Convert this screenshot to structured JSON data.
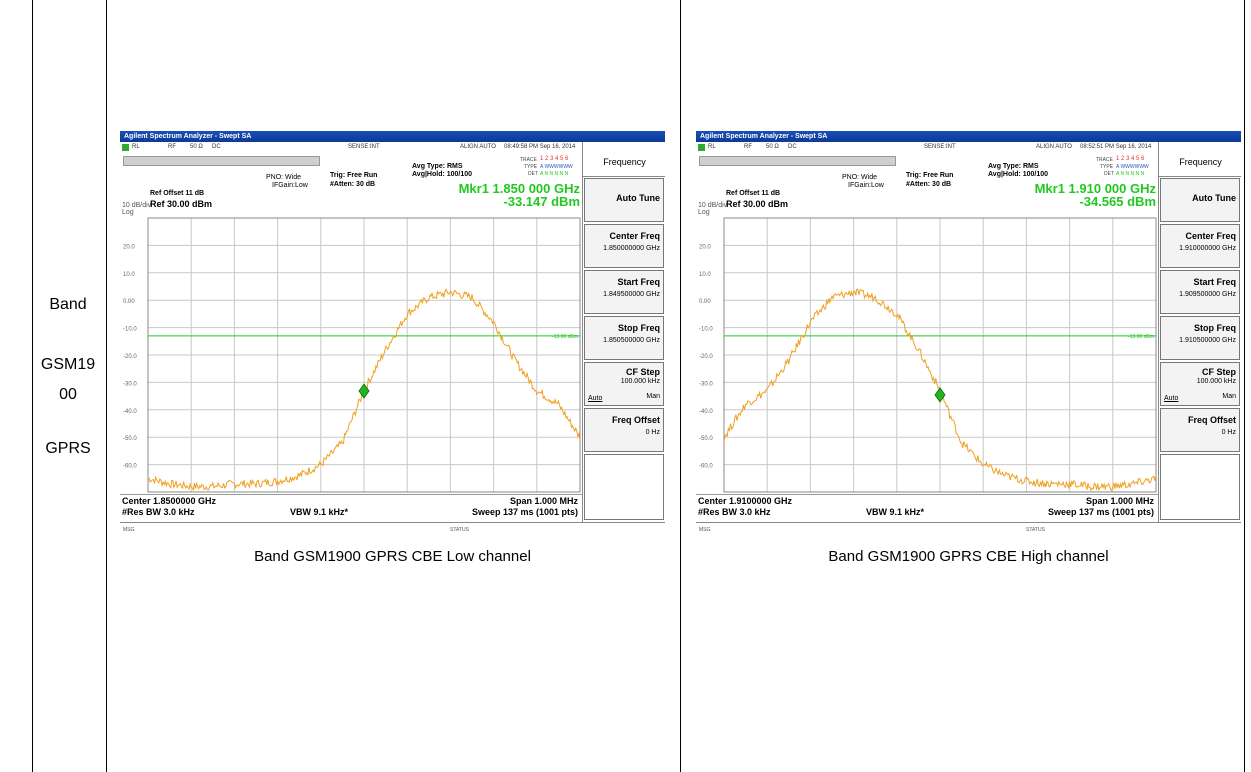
{
  "row_label": {
    "line1": "Band",
    "line2": "GSM19",
    "line3": "00",
    "line4": "GPRS"
  },
  "screens": [
    {
      "caption": "Band GSM1900 GPRS CBE Low channel",
      "window_title": "Agilent Spectrum Analyzer - Swept SA",
      "status_rl": "RL",
      "status_rf": "RF",
      "status_ohm": "50 Ω",
      "status_dc": "DC",
      "status_sense": "SENSE:INT",
      "status_align": "ALIGN AUTO",
      "timestamp": "08:49:58 PM Sep 16, 2014",
      "avg_type": "Avg Type: RMS",
      "avg_hold": "Avg|Hold: 100/100",
      "trace_label": "TRACE",
      "trace_digits": "1 2 3 4 5 6",
      "type_label": "TYPE",
      "type_value": "A WWWWWW",
      "det_label": "DET",
      "det_value": "A N N N N N",
      "pno": "PNO: Wide",
      "ifgain": "IFGain:Low",
      "trig": "Trig: Free Run",
      "atten": "#Atten: 30 dB",
      "ref_offset": "Ref Offset 11 dB",
      "scale": "10 dB/div",
      "log": "Log",
      "ref_level": "Ref 30.00 dBm",
      "marker_freq": "Mkr1 1.850 000 GHz",
      "marker_level": "-33.147 dBm",
      "limit_label": "-13.00 dBm",
      "center": "Center 1.8500000 GHz",
      "res_bw": "#Res BW 3.0 kHz",
      "vbw": "VBW 9.1 kHz*",
      "span": "Span 1.000 MHz",
      "sweep": "Sweep  137 ms (1001 pts)",
      "msg": "MSG",
      "status": "STATUS",
      "menu": {
        "title": "Frequency",
        "auto_tune": "Auto Tune",
        "center_freq": "Center Freq",
        "center_freq_value": "1.850000000 GHz",
        "start_freq": "Start Freq",
        "start_freq_value": "1.849500000 GHz",
        "stop_freq": "Stop Freq",
        "stop_freq_value": "1.850500000 GHz",
        "cf_step": "CF Step",
        "cf_step_value": "100.000 kHz",
        "cf_auto": "Auto",
        "cf_man": "Man",
        "freq_offset": "Freq Offset",
        "freq_offset_value": "0 Hz"
      },
      "y_ticks": [
        "20.0",
        "10.0",
        "0.00",
        "-10.0",
        "-20.0",
        "-30.0",
        "-40.0",
        "-50.0",
        "-60.0"
      ]
    },
    {
      "caption": "Band GSM1900 GPRS CBE High channel",
      "window_title": "Agilent Spectrum Analyzer - Swept SA",
      "status_rl": "RL",
      "status_rf": "RF",
      "status_ohm": "50 Ω",
      "status_dc": "DC",
      "status_sense": "SENSE:INT",
      "status_align": "ALIGN AUTO",
      "timestamp": "08:52:51 PM Sep 16, 2014",
      "avg_type": "Avg Type: RMS",
      "avg_hold": "Avg|Hold: 100/100",
      "trace_label": "TRACE",
      "trace_digits": "1 2 3 4 5 6",
      "type_label": "TYPE",
      "type_value": "A WWWWWW",
      "det_label": "DET",
      "det_value": "A N N N N N",
      "pno": "PNO: Wide",
      "ifgain": "IFGain:Low",
      "trig": "Trig: Free Run",
      "atten": "#Atten: 30 dB",
      "ref_offset": "Ref Offset 11 dB",
      "scale": "10 dB/div",
      "log": "Log",
      "ref_level": "Ref 30.00 dBm",
      "marker_freq": "Mkr1 1.910 000 GHz",
      "marker_level": "-34.565 dBm",
      "limit_label": "-13.00 dBm",
      "center": "Center 1.9100000 GHz",
      "res_bw": "#Res BW 3.0 kHz",
      "vbw": "VBW 9.1 kHz*",
      "span": "Span 1.000 MHz",
      "sweep": "Sweep  137 ms (1001 pts)",
      "msg": "MSG",
      "status": "STATUS",
      "menu": {
        "title": "Frequency",
        "auto_tune": "Auto Tune",
        "center_freq": "Center Freq",
        "center_freq_value": "1.910000000 GHz",
        "start_freq": "Start Freq",
        "start_freq_value": "1.909500000 GHz",
        "stop_freq": "Stop Freq",
        "stop_freq_value": "1.910500000 GHz",
        "cf_step": "CF Step",
        "cf_step_value": "100.000 kHz",
        "cf_auto": "Auto",
        "cf_man": "Man",
        "freq_offset": "Freq Offset",
        "freq_offset_value": "0 Hz"
      },
      "y_ticks": [
        "20.0",
        "10.0",
        "0.00",
        "-10.0",
        "-20.0",
        "-30.0",
        "-40.0",
        "-50.0",
        "-60.0"
      ]
    }
  ],
  "colors": {
    "trace": "#f0a020",
    "limit_line": "#22c722",
    "marker": "#22b322",
    "marker_text": "#22c722"
  },
  "chart_data": [
    {
      "type": "line",
      "x_unit": "MHz",
      "xlim": [
        1849.5,
        1850.5
      ],
      "ylim": [
        -70,
        30
      ],
      "limit_line": -13,
      "marker": {
        "x": 1850.0,
        "y": -33.147
      },
      "series": [
        {
          "x": [
            1849.5,
            1849.55,
            1849.6,
            1849.65,
            1849.7,
            1849.75,
            1849.8,
            1849.85,
            1849.9,
            1849.95,
            1850.0,
            1850.05,
            1850.1,
            1850.15,
            1850.2,
            1850.25,
            1850.3,
            1850.35,
            1850.4,
            1850.45,
            1850.5
          ],
          "values": [
            -65,
            -67,
            -68,
            -68,
            -67,
            -67,
            -66,
            -64,
            -60,
            -52,
            -33,
            -18,
            -5,
            1,
            3,
            1,
            -8,
            -22,
            -33,
            -38,
            -50
          ]
        }
      ]
    },
    {
      "type": "line",
      "x_unit": "MHz",
      "xlim": [
        1909.5,
        1910.5
      ],
      "ylim": [
        -70,
        30
      ],
      "limit_line": -13,
      "marker": {
        "x": 1910.0,
        "y": -34.565
      },
      "series": [
        {
          "x": [
            1909.5,
            1909.55,
            1909.6,
            1909.65,
            1909.7,
            1909.75,
            1909.8,
            1909.85,
            1909.9,
            1909.95,
            1910.0,
            1910.05,
            1910.1,
            1910.15,
            1910.2,
            1910.25,
            1910.3,
            1910.35,
            1910.4,
            1910.45,
            1910.5
          ],
          "values": [
            -50,
            -38,
            -33,
            -22,
            -8,
            1,
            3,
            1,
            -5,
            -18,
            -33,
            -52,
            -60,
            -64,
            -66,
            -67,
            -67,
            -68,
            -68,
            -67,
            -65
          ]
        }
      ]
    }
  ]
}
